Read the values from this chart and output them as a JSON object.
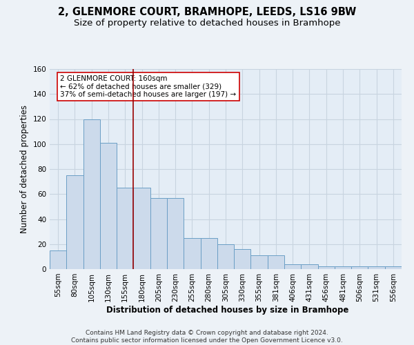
{
  "title": "2, GLENMORE COURT, BRAMHOPE, LEEDS, LS16 9BW",
  "subtitle": "Size of property relative to detached houses in Bramhope",
  "xlabel": "Distribution of detached houses by size in Bramhope",
  "ylabel": "Number of detached properties",
  "categories": [
    "55sqm",
    "80sqm",
    "105sqm",
    "130sqm",
    "155sqm",
    "180sqm",
    "205sqm",
    "230sqm",
    "255sqm",
    "280sqm",
    "305sqm",
    "330sqm",
    "355sqm",
    "381sqm",
    "406sqm",
    "431sqm",
    "456sqm",
    "481sqm",
    "506sqm",
    "531sqm",
    "556sqm"
  ],
  "values": [
    15,
    75,
    120,
    101,
    65,
    65,
    57,
    57,
    25,
    25,
    20,
    16,
    11,
    11,
    4,
    4,
    2,
    2,
    2,
    2,
    2
  ],
  "bar_color": "#ccdaeb",
  "bar_edge_color": "#6a9ec5",
  "vline_x_idx": 4,
  "vline_color": "#990000",
  "annotation_text": "2 GLENMORE COURT: 160sqm\n← 62% of detached houses are smaller (329)\n37% of semi-detached houses are larger (197) →",
  "annotation_box_color": "#ffffff",
  "annotation_box_edge": "#cc0000",
  "ylim": [
    0,
    160
  ],
  "yticks": [
    0,
    20,
    40,
    60,
    80,
    100,
    120,
    140,
    160
  ],
  "footer": "Contains HM Land Registry data © Crown copyright and database right 2024.\nContains public sector information licensed under the Open Government Licence v3.0.",
  "bg_color": "#edf2f7",
  "plot_bg_color": "#e4edf6",
  "grid_color": "#c8d4e0",
  "title_fontsize": 10.5,
  "subtitle_fontsize": 9.5,
  "axis_label_fontsize": 8.5,
  "tick_fontsize": 7.5,
  "footer_fontsize": 6.5
}
